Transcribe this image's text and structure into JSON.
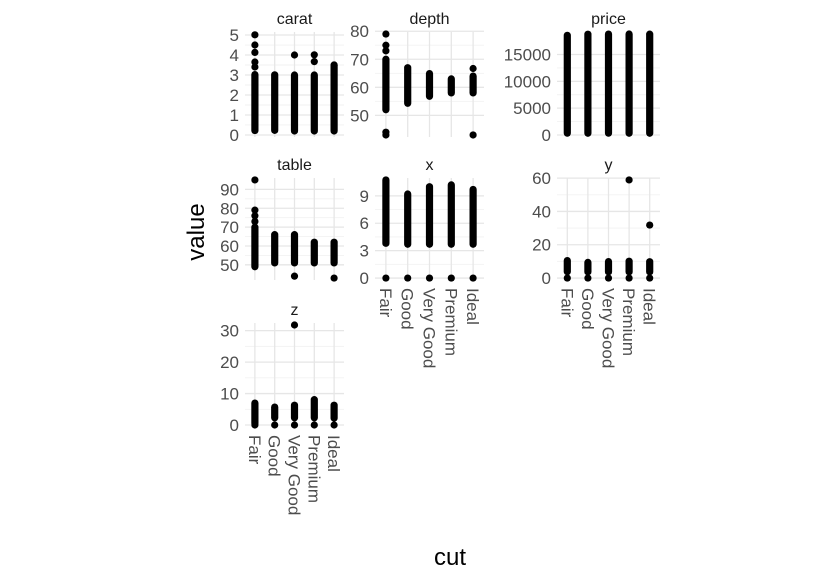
{
  "chart_data": {
    "type": "scatter",
    "xlabel": "cut",
    "ylabel": "value",
    "point_color": "#000000",
    "categories": [
      "Fair",
      "Good",
      "Very Good",
      "Premium",
      "Ideal"
    ],
    "facets": [
      {
        "name": "carat",
        "ylim": [
          0,
          5.05
        ],
        "yticks": [
          0,
          1,
          2,
          3,
          4,
          5
        ],
        "ranges": [
          [
            0.22,
            3.02
          ],
          [
            0.23,
            3.01
          ],
          [
            0.2,
            3.0
          ],
          [
            0.2,
            3.0
          ],
          [
            0.2,
            3.5
          ]
        ],
        "outliers": [
          [
            0,
            5.01
          ],
          [
            0,
            4.5
          ],
          [
            0,
            4.13
          ],
          [
            0,
            3.65
          ],
          [
            0,
            3.4
          ],
          [
            2,
            4.0
          ],
          [
            3,
            4.01
          ],
          [
            3,
            3.67
          ],
          [
            4,
            3.5
          ]
        ]
      },
      {
        "name": "depth",
        "ylim": [
          43,
          79
        ],
        "yticks": [
          50,
          60,
          70,
          80
        ],
        "ranges": [
          [
            52.0,
            70.0
          ],
          [
            54.3,
            67.0
          ],
          [
            56.8,
            64.9
          ],
          [
            58.0,
            63.0
          ],
          [
            58.0,
            64.0
          ]
        ],
        "outliers": [
          [
            0,
            79.0
          ],
          [
            0,
            75.0
          ],
          [
            0,
            73.0
          ],
          [
            0,
            43.0
          ],
          [
            0,
            44.0
          ],
          [
            4,
            43.0
          ],
          [
            4,
            66.7
          ]
        ]
      },
      {
        "name": "price",
        "ylim": [
          0,
          18823
        ],
        "yticks": [
          0,
          5000,
          10000,
          15000
        ],
        "ranges": [
          [
            337,
            18574
          ],
          [
            327,
            18788
          ],
          [
            336,
            18818
          ],
          [
            326,
            18823
          ],
          [
            326,
            18806
          ]
        ],
        "outliers": []
      },
      {
        "name": "table",
        "ylim": [
          43,
          95
        ],
        "yticks": [
          50,
          60,
          70,
          80,
          90
        ],
        "ranges": [
          [
            49,
            70
          ],
          [
            51,
            66
          ],
          [
            51,
            66
          ],
          [
            51,
            62
          ],
          [
            51,
            62
          ]
        ],
        "outliers": [
          [
            0,
            95
          ],
          [
            0,
            79
          ],
          [
            0,
            76
          ],
          [
            0,
            73
          ],
          [
            2,
            44
          ],
          [
            4,
            43
          ]
        ]
      },
      {
        "name": "x",
        "ylim": [
          0,
          10.74
        ],
        "yticks": [
          0,
          3,
          6,
          9
        ],
        "ranges": [
          [
            3.8,
            10.74
          ],
          [
            3.7,
            9.2
          ],
          [
            3.7,
            10.0
          ],
          [
            3.7,
            10.2
          ],
          [
            3.7,
            9.7
          ]
        ],
        "outliers": [
          [
            0,
            0
          ],
          [
            1,
            0
          ],
          [
            2,
            0
          ],
          [
            3,
            0
          ],
          [
            4,
            0
          ]
        ]
      },
      {
        "name": "y",
        "ylim": [
          0,
          58.9
        ],
        "yticks": [
          0,
          20,
          40,
          60
        ],
        "ranges": [
          [
            3.8,
            10.5
          ],
          [
            3.7,
            9.4
          ],
          [
            3.7,
            9.9
          ],
          [
            3.7,
            10.1
          ],
          [
            3.7,
            9.8
          ]
        ],
        "outliers": [
          [
            0,
            0
          ],
          [
            1,
            0
          ],
          [
            2,
            0
          ],
          [
            3,
            0
          ],
          [
            3,
            58.9
          ],
          [
            4,
            31.8
          ],
          [
            4,
            0
          ]
        ]
      },
      {
        "name": "z",
        "ylim": [
          0,
          31.8
        ],
        "yticks": [
          0,
          10,
          20,
          30
        ],
        "ranges": [
          [
            0.5,
            6.98
          ],
          [
            2.3,
            5.7
          ],
          [
            2.3,
            6.3
          ],
          [
            2.3,
            8.06
          ],
          [
            2.2,
            6.3
          ]
        ],
        "outliers": [
          [
            0,
            0
          ],
          [
            1,
            0
          ],
          [
            2,
            31.8
          ],
          [
            2,
            0
          ],
          [
            3,
            0
          ],
          [
            4,
            0
          ]
        ]
      }
    ]
  }
}
